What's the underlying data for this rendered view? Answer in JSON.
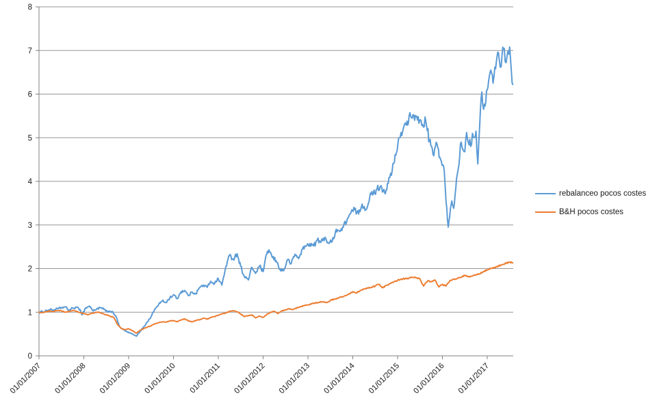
{
  "chart_data": {
    "type": "line",
    "title": "",
    "xlabel": "",
    "ylabel": "",
    "grid": "horizontal",
    "legend_position": "right",
    "background": "#ffffff",
    "axis_color": "#808080",
    "gridline_color": "#969696",
    "tick_label_color": "#1a1a1a",
    "y_axis": {
      "ticks": [
        0,
        1,
        2,
        3,
        4,
        5,
        6,
        7,
        8
      ],
      "range": [
        0,
        8
      ]
    },
    "x_axis": {
      "tick_labels": [
        "01/01/2007",
        "01/01/2008",
        "01/01/2009",
        "01/01/2010",
        "01/01/2011",
        "01/01/2012",
        "01/01/2013",
        "01/01/2014",
        "01/01/2015",
        "01/01/2016",
        "01/01/2017"
      ],
      "tick_years": [
        2007,
        2008,
        2009,
        2010,
        2011,
        2012,
        2013,
        2014,
        2015,
        2016,
        2017
      ],
      "range_years": [
        2007.0,
        2017.58
      ],
      "label_rotation_deg": -45
    },
    "series": [
      {
        "name": "rebalanceo pocos costes",
        "color": "#5B9BD5",
        "points": [
          [
            2007.0,
            1.0
          ],
          [
            2007.08,
            1.01
          ],
          [
            2007.17,
            1.04
          ],
          [
            2007.25,
            1.06
          ],
          [
            2007.33,
            1.05
          ],
          [
            2007.42,
            1.08
          ],
          [
            2007.5,
            1.1
          ],
          [
            2007.58,
            1.12
          ],
          [
            2007.67,
            1.05
          ],
          [
            2007.75,
            1.09
          ],
          [
            2007.83,
            1.11
          ],
          [
            2007.92,
            1.06
          ],
          [
            2007.96,
            0.94
          ],
          [
            2008.04,
            1.1
          ],
          [
            2008.13,
            1.14
          ],
          [
            2008.21,
            1.03
          ],
          [
            2008.29,
            1.08
          ],
          [
            2008.38,
            1.1
          ],
          [
            2008.46,
            1.06
          ],
          [
            2008.54,
            1.0
          ],
          [
            2008.63,
            1.02
          ],
          [
            2008.71,
            0.92
          ],
          [
            2008.79,
            0.68
          ],
          [
            2008.88,
            0.6
          ],
          [
            2008.96,
            0.55
          ],
          [
            2009.04,
            0.52
          ],
          [
            2009.13,
            0.47
          ],
          [
            2009.17,
            0.45
          ],
          [
            2009.25,
            0.55
          ],
          [
            2009.33,
            0.66
          ],
          [
            2009.42,
            0.78
          ],
          [
            2009.5,
            0.9
          ],
          [
            2009.58,
            1.06
          ],
          [
            2009.67,
            1.18
          ],
          [
            2009.75,
            1.26
          ],
          [
            2009.83,
            1.22
          ],
          [
            2009.92,
            1.33
          ],
          [
            2010.0,
            1.4
          ],
          [
            2010.08,
            1.31
          ],
          [
            2010.17,
            1.47
          ],
          [
            2010.25,
            1.5
          ],
          [
            2010.33,
            1.38
          ],
          [
            2010.42,
            1.46
          ],
          [
            2010.5,
            1.43
          ],
          [
            2010.58,
            1.56
          ],
          [
            2010.67,
            1.62
          ],
          [
            2010.75,
            1.57
          ],
          [
            2010.83,
            1.71
          ],
          [
            2010.92,
            1.66
          ],
          [
            2011.0,
            1.77
          ],
          [
            2011.08,
            1.62
          ],
          [
            2011.17,
            2.05
          ],
          [
            2011.25,
            2.3
          ],
          [
            2011.33,
            2.22
          ],
          [
            2011.42,
            2.34
          ],
          [
            2011.5,
            2.05
          ],
          [
            2011.58,
            1.82
          ],
          [
            2011.67,
            1.74
          ],
          [
            2011.75,
            2.03
          ],
          [
            2011.83,
            1.89
          ],
          [
            2011.92,
            2.06
          ],
          [
            2012.0,
            1.93
          ],
          [
            2012.08,
            2.33
          ],
          [
            2012.13,
            2.43
          ],
          [
            2012.21,
            2.25
          ],
          [
            2012.29,
            2.18
          ],
          [
            2012.38,
            1.98
          ],
          [
            2012.46,
            1.95
          ],
          [
            2012.54,
            2.2
          ],
          [
            2012.63,
            2.12
          ],
          [
            2012.71,
            2.33
          ],
          [
            2012.79,
            2.23
          ],
          [
            2012.88,
            2.45
          ],
          [
            2012.96,
            2.52
          ],
          [
            2013.04,
            2.57
          ],
          [
            2013.13,
            2.52
          ],
          [
            2013.21,
            2.66
          ],
          [
            2013.29,
            2.6
          ],
          [
            2013.38,
            2.72
          ],
          [
            2013.46,
            2.58
          ],
          [
            2013.54,
            2.62
          ],
          [
            2013.63,
            2.9
          ],
          [
            2013.71,
            2.85
          ],
          [
            2013.79,
            2.95
          ],
          [
            2013.88,
            3.15
          ],
          [
            2013.96,
            3.28
          ],
          [
            2014.04,
            3.35
          ],
          [
            2014.13,
            3.25
          ],
          [
            2014.21,
            3.48
          ],
          [
            2014.29,
            3.35
          ],
          [
            2014.38,
            3.65
          ],
          [
            2014.46,
            3.72
          ],
          [
            2014.54,
            3.82
          ],
          [
            2014.63,
            3.9
          ],
          [
            2014.71,
            3.74
          ],
          [
            2014.79,
            3.95
          ],
          [
            2014.88,
            4.25
          ],
          [
            2014.96,
            4.6
          ],
          [
            2015.04,
            5.0
          ],
          [
            2015.13,
            5.22
          ],
          [
            2015.21,
            5.38
          ],
          [
            2015.29,
            5.5
          ],
          [
            2015.38,
            5.4
          ],
          [
            2015.46,
            5.48
          ],
          [
            2015.54,
            5.28
          ],
          [
            2015.63,
            5.38
          ],
          [
            2015.71,
            4.92
          ],
          [
            2015.79,
            4.62
          ],
          [
            2015.88,
            4.85
          ],
          [
            2015.96,
            4.5
          ],
          [
            2016.04,
            4.25
          ],
          [
            2016.08,
            3.55
          ],
          [
            2016.13,
            2.95
          ],
          [
            2016.21,
            3.55
          ],
          [
            2016.25,
            3.38
          ],
          [
            2016.33,
            4.15
          ],
          [
            2016.42,
            4.9
          ],
          [
            2016.5,
            4.68
          ],
          [
            2016.54,
            5.12
          ],
          [
            2016.63,
            4.8
          ],
          [
            2016.67,
            5.1
          ],
          [
            2016.71,
            5.0
          ],
          [
            2016.75,
            5.15
          ],
          [
            2016.79,
            4.4
          ],
          [
            2016.83,
            5.25
          ],
          [
            2016.88,
            6.05
          ],
          [
            2016.92,
            5.65
          ],
          [
            2017.0,
            6.1
          ],
          [
            2017.08,
            6.55
          ],
          [
            2017.13,
            6.25
          ],
          [
            2017.17,
            6.62
          ],
          [
            2017.25,
            6.95
          ],
          [
            2017.29,
            6.62
          ],
          [
            2017.33,
            6.88
          ],
          [
            2017.38,
            7.05
          ],
          [
            2017.42,
            6.72
          ],
          [
            2017.46,
            6.98
          ],
          [
            2017.5,
            7.08
          ],
          [
            2017.54,
            6.5
          ],
          [
            2017.57,
            6.22
          ]
        ]
      },
      {
        "name": "B&H pocos costes",
        "color": "#ED7D31",
        "points": [
          [
            2007.0,
            1.0
          ],
          [
            2007.08,
            0.99
          ],
          [
            2007.17,
            1.01
          ],
          [
            2007.25,
            1.03
          ],
          [
            2007.33,
            1.02
          ],
          [
            2007.42,
            1.04
          ],
          [
            2007.5,
            1.03
          ],
          [
            2007.58,
            1.0
          ],
          [
            2007.67,
            1.02
          ],
          [
            2007.75,
            1.04
          ],
          [
            2007.83,
            1.02
          ],
          [
            2007.92,
            0.99
          ],
          [
            2008.0,
            0.97
          ],
          [
            2008.08,
            0.94
          ],
          [
            2008.17,
            0.97
          ],
          [
            2008.25,
            0.99
          ],
          [
            2008.33,
            1.0
          ],
          [
            2008.42,
            0.97
          ],
          [
            2008.5,
            0.94
          ],
          [
            2008.58,
            0.91
          ],
          [
            2008.67,
            0.88
          ],
          [
            2008.75,
            0.72
          ],
          [
            2008.83,
            0.63
          ],
          [
            2008.92,
            0.6
          ],
          [
            2009.0,
            0.62
          ],
          [
            2009.08,
            0.58
          ],
          [
            2009.17,
            0.52
          ],
          [
            2009.25,
            0.58
          ],
          [
            2009.33,
            0.62
          ],
          [
            2009.42,
            0.66
          ],
          [
            2009.5,
            0.69
          ],
          [
            2009.58,
            0.73
          ],
          [
            2009.67,
            0.76
          ],
          [
            2009.75,
            0.78
          ],
          [
            2009.83,
            0.77
          ],
          [
            2009.92,
            0.8
          ],
          [
            2010.0,
            0.81
          ],
          [
            2010.08,
            0.78
          ],
          [
            2010.17,
            0.82
          ],
          [
            2010.25,
            0.85
          ],
          [
            2010.33,
            0.8
          ],
          [
            2010.42,
            0.78
          ],
          [
            2010.5,
            0.81
          ],
          [
            2010.58,
            0.83
          ],
          [
            2010.67,
            0.86
          ],
          [
            2010.75,
            0.84
          ],
          [
            2010.83,
            0.88
          ],
          [
            2010.92,
            0.9
          ],
          [
            2011.0,
            0.93
          ],
          [
            2011.08,
            0.96
          ],
          [
            2011.17,
            0.98
          ],
          [
            2011.25,
            1.02
          ],
          [
            2011.33,
            1.03
          ],
          [
            2011.42,
            1.01
          ],
          [
            2011.5,
            0.96
          ],
          [
            2011.58,
            0.9
          ],
          [
            2011.67,
            0.92
          ],
          [
            2011.75,
            0.94
          ],
          [
            2011.83,
            0.87
          ],
          [
            2011.92,
            0.91
          ],
          [
            2012.0,
            0.88
          ],
          [
            2012.08,
            0.95
          ],
          [
            2012.17,
            1.0
          ],
          [
            2012.25,
            1.02
          ],
          [
            2012.33,
            0.97
          ],
          [
            2012.42,
            1.03
          ],
          [
            2012.5,
            1.05
          ],
          [
            2012.58,
            1.08
          ],
          [
            2012.67,
            1.06
          ],
          [
            2012.75,
            1.1
          ],
          [
            2012.83,
            1.13
          ],
          [
            2012.92,
            1.15
          ],
          [
            2013.0,
            1.17
          ],
          [
            2013.08,
            1.19
          ],
          [
            2013.17,
            1.21
          ],
          [
            2013.25,
            1.23
          ],
          [
            2013.33,
            1.24
          ],
          [
            2013.42,
            1.22
          ],
          [
            2013.5,
            1.27
          ],
          [
            2013.58,
            1.3
          ],
          [
            2013.67,
            1.32
          ],
          [
            2013.75,
            1.35
          ],
          [
            2013.83,
            1.38
          ],
          [
            2013.92,
            1.42
          ],
          [
            2014.0,
            1.47
          ],
          [
            2014.08,
            1.44
          ],
          [
            2014.17,
            1.5
          ],
          [
            2014.25,
            1.53
          ],
          [
            2014.33,
            1.55
          ],
          [
            2014.42,
            1.57
          ],
          [
            2014.5,
            1.6
          ],
          [
            2014.58,
            1.64
          ],
          [
            2014.67,
            1.56
          ],
          [
            2014.75,
            1.62
          ],
          [
            2014.83,
            1.66
          ],
          [
            2014.92,
            1.7
          ],
          [
            2015.0,
            1.73
          ],
          [
            2015.08,
            1.76
          ],
          [
            2015.17,
            1.77
          ],
          [
            2015.25,
            1.78
          ],
          [
            2015.33,
            1.8
          ],
          [
            2015.42,
            1.79
          ],
          [
            2015.5,
            1.76
          ],
          [
            2015.58,
            1.6
          ],
          [
            2015.67,
            1.72
          ],
          [
            2015.75,
            1.7
          ],
          [
            2015.83,
            1.74
          ],
          [
            2015.92,
            1.58
          ],
          [
            2016.0,
            1.64
          ],
          [
            2016.08,
            1.6
          ],
          [
            2016.17,
            1.73
          ],
          [
            2016.25,
            1.76
          ],
          [
            2016.33,
            1.77
          ],
          [
            2016.42,
            1.8
          ],
          [
            2016.5,
            1.84
          ],
          [
            2016.58,
            1.81
          ],
          [
            2016.67,
            1.83
          ],
          [
            2016.75,
            1.86
          ],
          [
            2016.83,
            1.88
          ],
          [
            2016.92,
            1.93
          ],
          [
            2017.0,
            1.97
          ],
          [
            2017.08,
            2.0
          ],
          [
            2017.17,
            2.03
          ],
          [
            2017.25,
            2.06
          ],
          [
            2017.33,
            2.09
          ],
          [
            2017.42,
            2.12
          ],
          [
            2017.5,
            2.15
          ],
          [
            2017.57,
            2.13
          ]
        ]
      }
    ]
  }
}
